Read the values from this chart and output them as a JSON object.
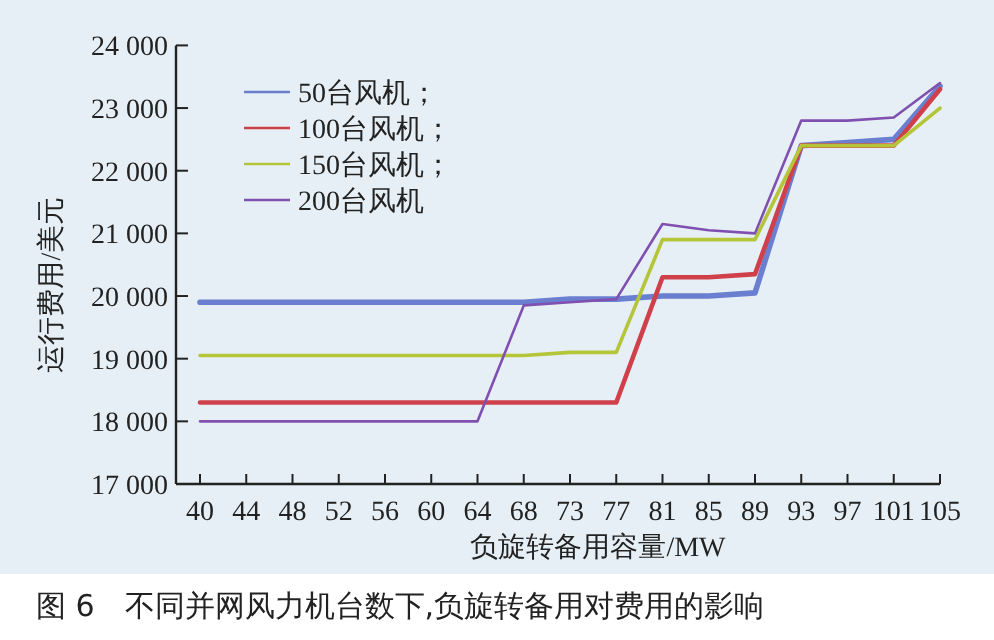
{
  "chart_data": {
    "type": "line",
    "xlabel": "负旋转备用容量/MW",
    "ylabel": "运行费用/美元",
    "annotations": [
      "图 6　不同并网风力机台数下,负旋转备用对费用的影响"
    ],
    "categories": [
      "40",
      "44",
      "48",
      "52",
      "56",
      "60",
      "64",
      "68",
      "73",
      "77",
      "81",
      "85",
      "89",
      "93",
      "97",
      "101",
      "105"
    ],
    "ylim": [
      17000,
      24000
    ],
    "yticks": [
      {
        "value": 17000,
        "label": "17 000"
      },
      {
        "value": 18000,
        "label": "18 000"
      },
      {
        "value": 19000,
        "label": "19 000"
      },
      {
        "value": 20000,
        "label": "20 000"
      },
      {
        "value": 21000,
        "label": "21 000"
      },
      {
        "value": 22000,
        "label": "22 000"
      },
      {
        "value": 23000,
        "label": "23 000"
      },
      {
        "value": 24000,
        "label": "24 000"
      }
    ],
    "legend": "top left",
    "grid": false,
    "marker": "none",
    "line_style": "solid",
    "series": [
      {
        "name": "50台风机；",
        "color": "#6a7fd0",
        "values": [
          19900,
          19900,
          19900,
          19900,
          19900,
          19900,
          19900,
          19900,
          19950,
          19950,
          20000,
          20000,
          20050,
          22400,
          22450,
          22500,
          23350
        ]
      },
      {
        "name": "100台风机；",
        "color": "#d0404a",
        "values": [
          18300,
          18300,
          18300,
          18300,
          18300,
          18300,
          18300,
          18300,
          18300,
          18300,
          20300,
          20300,
          20350,
          22400,
          22400,
          22400,
          23300
        ]
      },
      {
        "name": "150台风机；",
        "color": "#b5c53a",
        "values": [
          19050,
          19050,
          19050,
          19050,
          19050,
          19050,
          19050,
          19050,
          19100,
          19100,
          20900,
          20900,
          20900,
          22400,
          22400,
          22400,
          23000
        ]
      },
      {
        "name": "200台风机",
        "color": "#8050b0",
        "values": [
          18000,
          18000,
          18000,
          18000,
          18000,
          18000,
          18000,
          19850,
          19900,
          19950,
          21150,
          21050,
          21000,
          22800,
          22800,
          22850,
          23400
        ]
      }
    ]
  }
}
